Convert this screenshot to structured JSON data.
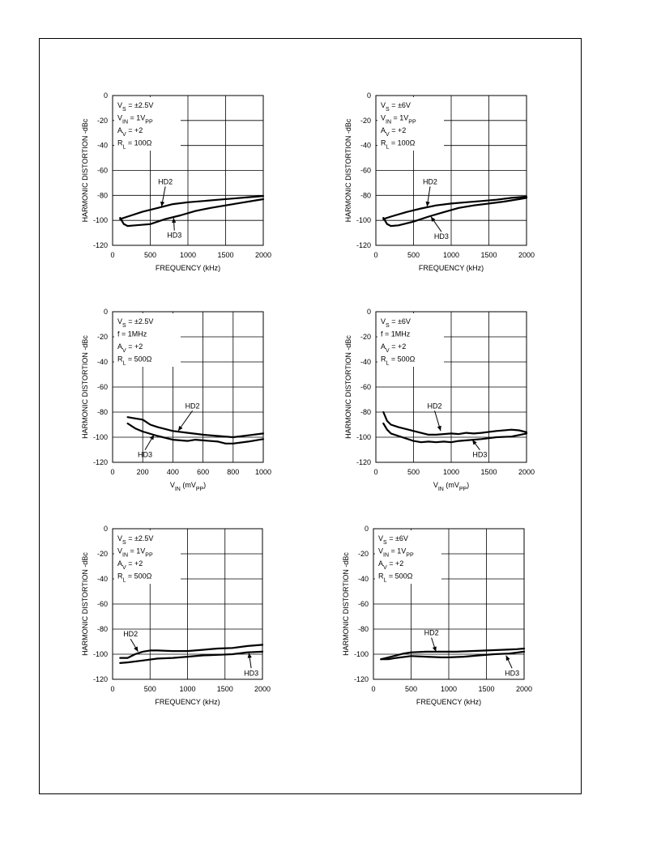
{
  "chart_data": [
    {
      "type": "line",
      "ylabel": "HARMONIC DISTORTION -dBc",
      "xlabel": "FREQUENCY (kHz)",
      "xlim": [
        0,
        2000
      ],
      "ylim": [
        -120,
        0
      ],
      "xticks": [
        0,
        500,
        1000,
        1500,
        2000
      ],
      "yticks": [
        0,
        -20,
        -40,
        -60,
        -80,
        -100,
        -120
      ],
      "grid": true,
      "conditions": [
        {
          "main": "V",
          "sub": "S",
          "rest": " = ±2.5V"
        },
        {
          "main": "V",
          "sub": "IN",
          "rest": " = 1V",
          "sub2": "PP"
        },
        {
          "main": "A",
          "sub": "V",
          "rest": " = +2"
        },
        {
          "main": "R",
          "sub": "L",
          "rest": " = 100Ω"
        }
      ],
      "series": [
        {
          "name": "HD2",
          "x": [
            100,
            200,
            400,
            600,
            800,
            1000,
            1200,
            1400,
            1600,
            1800,
            2000
          ],
          "y": [
            -99,
            -97,
            -93,
            -90,
            -87,
            -85.5,
            -84.5,
            -83.5,
            -82.5,
            -81.5,
            -80.5
          ]
        },
        {
          "name": "HD3",
          "x": [
            100,
            150,
            200,
            300,
            500,
            700,
            900,
            1100,
            1300,
            1500,
            1700,
            1900,
            2000
          ],
          "y": [
            -98,
            -103,
            -104.5,
            -104,
            -103,
            -99,
            -96,
            -92.5,
            -90,
            -88,
            -86,
            -84,
            -83
          ]
        }
      ],
      "annotations": [
        {
          "text": "HD2",
          "x": 700,
          "y": -69,
          "ax": 650,
          "ay": -89
        },
        {
          "text": "HD3",
          "x": 820,
          "y": -112,
          "ax": 810,
          "ay": -98
        }
      ]
    },
    {
      "type": "line",
      "ylabel": "HARMONIC DISTORTION -dBc",
      "xlabel": "FREQUENCY (kHz)",
      "xlim": [
        0,
        2000
      ],
      "ylim": [
        -120,
        0
      ],
      "xticks": [
        0,
        500,
        1000,
        1500,
        2000
      ],
      "yticks": [
        0,
        -20,
        -40,
        -60,
        -80,
        -100,
        -120
      ],
      "grid": true,
      "conditions": [
        {
          "main": "V",
          "sub": "S",
          "rest": " = ±6V"
        },
        {
          "main": "V",
          "sub": "IN",
          "rest": " = 1V",
          "sub2": "PP"
        },
        {
          "main": "A",
          "sub": "V",
          "rest": " = +2"
        },
        {
          "main": "R",
          "sub": "L",
          "rest": " = 100Ω"
        }
      ],
      "series": [
        {
          "name": "HD2",
          "x": [
            100,
            200,
            400,
            600,
            800,
            1000,
            1200,
            1400,
            1600,
            1800,
            2000
          ],
          "y": [
            -99,
            -97,
            -93.5,
            -90.5,
            -88,
            -86.5,
            -85.5,
            -84.5,
            -83.5,
            -82,
            -81
          ]
        },
        {
          "name": "HD3",
          "x": [
            100,
            150,
            200,
            300,
            500,
            700,
            900,
            1100,
            1300,
            1500,
            1700,
            1900,
            2000
          ],
          "y": [
            -98,
            -103,
            -104.5,
            -104,
            -101,
            -97,
            -93.5,
            -90,
            -88,
            -86.5,
            -85,
            -83,
            -82
          ]
        }
      ],
      "annotations": [
        {
          "text": "HD2",
          "x": 720,
          "y": -69,
          "ax": 680,
          "ay": -89
        },
        {
          "text": "HD3",
          "x": 870,
          "y": -113,
          "ax": 730,
          "ay": -97
        }
      ]
    },
    {
      "type": "line",
      "ylabel": "HARMONIC DISTORTION -dBc",
      "xlabel": {
        "main": "V",
        "sub": "IN",
        "rest": " (mV",
        "sub2": "PP",
        "close": ")"
      },
      "xlim": [
        0,
        1000
      ],
      "ylim": [
        -120,
        0
      ],
      "xticks": [
        0,
        200,
        400,
        600,
        800,
        1000
      ],
      "yticks": [
        0,
        -20,
        -40,
        -60,
        -80,
        -100,
        -120
      ],
      "grid": true,
      "conditions": [
        {
          "main": "V",
          "sub": "S",
          "rest": " = ±2.5V"
        },
        {
          "main": "",
          "sub": "",
          "rest": "f = 1MHz"
        },
        {
          "main": "A",
          "sub": "V",
          "rest": " = +2"
        },
        {
          "main": "R",
          "sub": "L",
          "rest": " = 500Ω"
        }
      ],
      "series": [
        {
          "name": "HD2",
          "x": [
            100,
            150,
            200,
            250,
            300,
            400,
            500,
            600,
            700,
            800,
            900,
            1000
          ],
          "y": [
            -84,
            -85,
            -86,
            -90,
            -92,
            -95,
            -96.5,
            -98,
            -99,
            -100,
            -98.5,
            -97
          ]
        },
        {
          "name": "HD3",
          "x": [
            100,
            150,
            200,
            300,
            400,
            450,
            500,
            550,
            600,
            700,
            750,
            800,
            900,
            1000
          ],
          "y": [
            -89,
            -93,
            -95.5,
            -99,
            -102,
            -102.5,
            -103,
            -102,
            -102.5,
            -103.5,
            -105,
            -105,
            -103.5,
            -101.5
          ]
        }
      ],
      "annotations": [
        {
          "text": "HD2",
          "x": 530,
          "y": -75,
          "ax": 435,
          "ay": -95
        },
        {
          "text": "HD3",
          "x": 215,
          "y": -114,
          "ax": 275,
          "ay": -98
        }
      ]
    },
    {
      "type": "line",
      "ylabel": "HARMONIC DISTORTION -dBc",
      "xlabel": {
        "main": "V",
        "sub": "IN",
        "rest": " (mV",
        "sub2": "PP",
        "close": ")"
      },
      "xlim": [
        0,
        2000
      ],
      "ylim": [
        -120,
        0
      ],
      "xticks": [
        0,
        500,
        1000,
        1500,
        2000
      ],
      "yticks": [
        0,
        -20,
        -40,
        -60,
        -80,
        -100,
        -120
      ],
      "grid": true,
      "conditions": [
        {
          "main": "V",
          "sub": "S",
          "rest": " = ±6V"
        },
        {
          "main": "",
          "sub": "",
          "rest": "f = 1MHz"
        },
        {
          "main": "A",
          "sub": "V",
          "rest": " = +2"
        },
        {
          "main": "R",
          "sub": "L",
          "rest": " = 500Ω"
        }
      ],
      "series": [
        {
          "name": "HD2",
          "x": [
            100,
            150,
            200,
            300,
            500,
            700,
            800,
            900,
            1000,
            1100,
            1200,
            1300,
            1400,
            1600,
            1800,
            1900,
            2000
          ],
          "y": [
            -80,
            -87,
            -90,
            -92,
            -95,
            -98,
            -98,
            -97.5,
            -97,
            -97.5,
            -96.5,
            -97,
            -96.5,
            -95,
            -94,
            -94.5,
            -96
          ]
        },
        {
          "name": "HD3",
          "x": [
            100,
            150,
            200,
            300,
            500,
            600,
            700,
            800,
            900,
            1000,
            1100,
            1200,
            1400,
            1600,
            1800,
            2000
          ],
          "y": [
            -89,
            -94,
            -97,
            -99,
            -103,
            -104,
            -103.5,
            -104,
            -103.5,
            -104,
            -103,
            -102.5,
            -101.5,
            -100,
            -99.5,
            -97
          ]
        }
      ],
      "annotations": [
        {
          "text": "HD2",
          "x": 780,
          "y": -75,
          "ax": 860,
          "ay": -95
        },
        {
          "text": "HD3",
          "x": 1380,
          "y": -114,
          "ax": 1280,
          "ay": -102
        }
      ]
    },
    {
      "type": "line",
      "ylabel": "HARMONIC DISTORTION -dBc",
      "xlabel": "FREQUENCY (kHz)",
      "xlim": [
        0,
        2000
      ],
      "ylim": [
        -120,
        0
      ],
      "xticks": [
        0,
        500,
        1000,
        1500,
        2000
      ],
      "yticks": [
        0,
        -20,
        -40,
        -60,
        -80,
        -100,
        -120
      ],
      "grid": true,
      "conditions": [
        {
          "main": "V",
          "sub": "S",
          "rest": " = ±2.5V"
        },
        {
          "main": "V",
          "sub": "IN",
          "rest": " = 1V",
          "sub2": "PP"
        },
        {
          "main": "A",
          "sub": "V",
          "rest": " = +2"
        },
        {
          "main": "R",
          "sub": "L",
          "rest": " = 500Ω"
        }
      ],
      "series": [
        {
          "name": "HD2",
          "x": [
            100,
            200,
            300,
            400,
            500,
            600,
            800,
            1000,
            1200,
            1400,
            1600,
            1800,
            2000
          ],
          "y": [
            -103,
            -103,
            -100,
            -98,
            -97,
            -97,
            -97.5,
            -97.5,
            -96.5,
            -95.5,
            -95,
            -93.5,
            -92.5
          ]
        },
        {
          "name": "HD3",
          "x": [
            100,
            200,
            400,
            600,
            800,
            1000,
            1200,
            1400,
            1600,
            1800,
            2000
          ],
          "y": [
            -107,
            -106.5,
            -105,
            -103.5,
            -103,
            -102,
            -101,
            -100.5,
            -100,
            -98.5,
            -98
          ]
        }
      ],
      "annotations": [
        {
          "text": "HD2",
          "x": 240,
          "y": -84,
          "ax": 340,
          "ay": -98
        },
        {
          "text": "HD3",
          "x": 1850,
          "y": -115,
          "ax": 1820,
          "ay": -99
        }
      ]
    },
    {
      "type": "line",
      "ylabel": "HARMONIC DISTORTION -dBc",
      "xlabel": "FREQUENCY (kHz)",
      "xlim": [
        0,
        2000
      ],
      "ylim": [
        -120,
        0
      ],
      "xticks": [
        0,
        500,
        1000,
        1500,
        2000
      ],
      "yticks": [
        0,
        -20,
        -40,
        -60,
        -80,
        -100,
        -120
      ],
      "grid": true,
      "conditions": [
        {
          "main": "V",
          "sub": "S",
          "rest": " = ±6V"
        },
        {
          "main": "V",
          "sub": "IN",
          "rest": " = 1V",
          "sub2": "PP"
        },
        {
          "main": "A",
          "sub": "V",
          "rest": " = +2"
        },
        {
          "main": "R",
          "sub": "L",
          "rest": " = 500Ω"
        }
      ],
      "series": [
        {
          "name": "HD2",
          "x": [
            100,
            200,
            400,
            500,
            700,
            900,
            1100,
            1300,
            1500,
            1700,
            1900,
            2000
          ],
          "y": [
            -104,
            -102.5,
            -99.5,
            -98.5,
            -98,
            -98,
            -98,
            -97.5,
            -97,
            -96.5,
            -96,
            -95.5
          ]
        },
        {
          "name": "HD3",
          "x": [
            100,
            200,
            300,
            500,
            700,
            900,
            1000,
            1200,
            1400,
            1600,
            1800,
            2000
          ],
          "y": [
            -104,
            -104,
            -103,
            -101.5,
            -102,
            -102.5,
            -102.5,
            -102,
            -101,
            -100,
            -99.5,
            -98
          ]
        }
      ],
      "annotations": [
        {
          "text": "HD2",
          "x": 770,
          "y": -83,
          "ax": 830,
          "ay": -98
        },
        {
          "text": "HD3",
          "x": 1840,
          "y": -115,
          "ax": 1760,
          "ay": -101
        }
      ]
    }
  ]
}
